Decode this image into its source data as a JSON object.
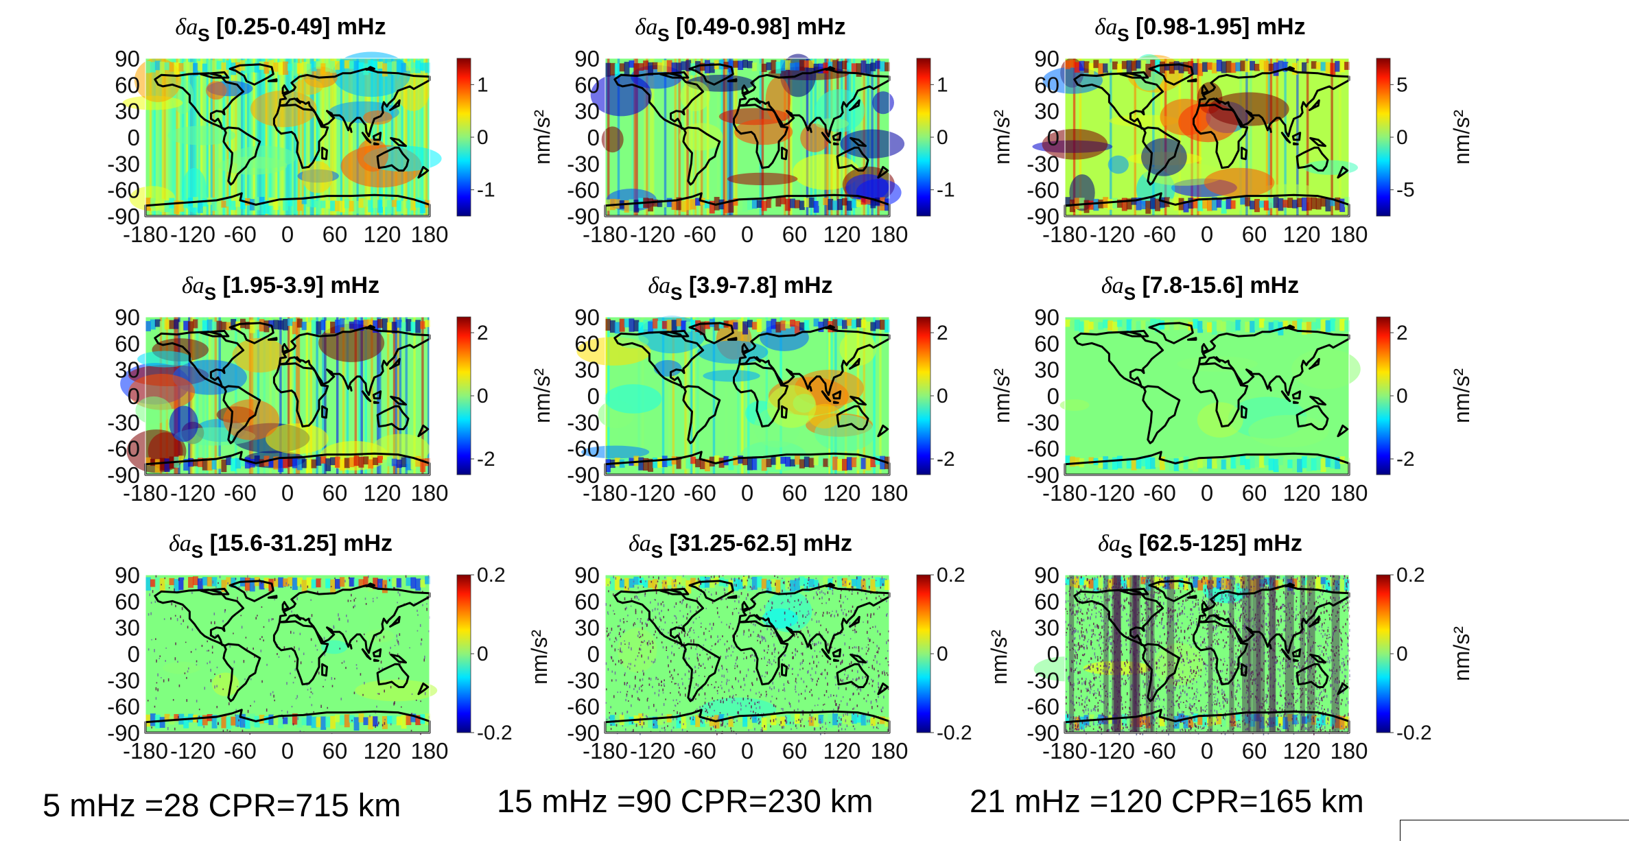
{
  "chart_data": {
    "type": "heatmap",
    "layout": "3x3 grid of global maps",
    "colormap": "jet",
    "x_ticks": [
      "-180",
      "-120",
      "-60",
      "0",
      "60",
      "120",
      "180"
    ],
    "y_ticks": [
      "90",
      "60",
      "30",
      "0",
      "-30",
      "-60",
      "-90"
    ],
    "xlim": [
      -180,
      180
    ],
    "ylim": [
      -90,
      90
    ],
    "colorbar_unit": "nm/s²",
    "panels": [
      {
        "title_symbol": "δa",
        "title_sub": "S",
        "title_band": "[0.25-0.49] mHz",
        "clim": [
          -1.5,
          1.5
        ],
        "cbar_ticks": [
          "1",
          "0",
          "-1"
        ],
        "cbar_values": [
          1,
          0,
          -1
        ],
        "style": "vertical-striped",
        "unit_side": "right"
      },
      {
        "title_symbol": "δa",
        "title_sub": "S",
        "title_band": "[0.49-0.98] mHz",
        "clim": [
          -1.5,
          1.5
        ],
        "cbar_ticks": [
          "1",
          "0",
          "-1"
        ],
        "cbar_values": [
          1,
          0,
          -1
        ],
        "style": "high-variance",
        "unit_side": "right"
      },
      {
        "title_symbol": "δa",
        "title_sub": "S",
        "title_band": "[0.98-1.95] mHz",
        "clim": [
          -7.5,
          7.5
        ],
        "cbar_ticks": [
          "5",
          "0",
          "-5"
        ],
        "cbar_values": [
          5,
          0,
          -5
        ],
        "style": "banded",
        "unit_side": "right"
      },
      {
        "title_symbol": "δa",
        "title_sub": "S",
        "title_band": "[1.95-3.9] mHz",
        "clim": [
          -2.5,
          2.5
        ],
        "cbar_ticks": [
          "2",
          "0",
          "-2"
        ],
        "cbar_values": [
          2,
          0,
          -2
        ],
        "style": "high-variance",
        "unit_side": "right"
      },
      {
        "title_symbol": "δa",
        "title_sub": "S",
        "title_band": "[3.9-7.8] mHz",
        "clim": [
          -2.5,
          2.5
        ],
        "cbar_ticks": [
          "2",
          "0",
          "-2"
        ],
        "cbar_values": [
          2,
          0,
          -2
        ],
        "style": "moderate",
        "unit_side": "right"
      },
      {
        "title_symbol": "δa",
        "title_sub": "S",
        "title_band": "[7.8-15.6] mHz",
        "clim": [
          -2.5,
          2.5
        ],
        "cbar_ticks": [
          "2",
          "0",
          "-2"
        ],
        "cbar_values": [
          2,
          0,
          -2
        ],
        "style": "quiet",
        "unit_side": "right"
      },
      {
        "title_symbol": "δa",
        "title_sub": "S",
        "title_band": "[15.6-31.25] mHz",
        "clim": [
          -0.2,
          0.2
        ],
        "cbar_ticks": [
          "0.2",
          "0",
          "-0.2"
        ],
        "cbar_values": [
          0.2,
          0,
          -0.2
        ],
        "style": "quiet-speckle",
        "unit_side": "none"
      },
      {
        "title_symbol": "δa",
        "title_sub": "S",
        "title_band": "[31.25-62.5] mHz",
        "clim": [
          -0.2,
          0.2
        ],
        "cbar_ticks": [
          "0.2",
          "0",
          "-0.2"
        ],
        "cbar_values": [
          0.2,
          0,
          -0.2
        ],
        "style": "noise",
        "unit_side": "left"
      },
      {
        "title_symbol": "δa",
        "title_sub": "S",
        "title_band": "[62.5-125] mHz",
        "clim": [
          -0.2,
          0.2
        ],
        "cbar_ticks": [
          "0.2",
          "0",
          "-0.2"
        ],
        "cbar_values": [
          0.2,
          0,
          -0.2
        ],
        "style": "dense-noise",
        "unit_side": "both"
      }
    ]
  },
  "footer": {
    "labels": [
      "5 mHz =28 CPR=715 km",
      "15 mHz =90 CPR=230 km",
      "21 mHz =120 CPR=165 km"
    ]
  },
  "colors": {
    "background": "#ffffff",
    "coastline": "#000000",
    "neutral": "#8ef37a"
  }
}
